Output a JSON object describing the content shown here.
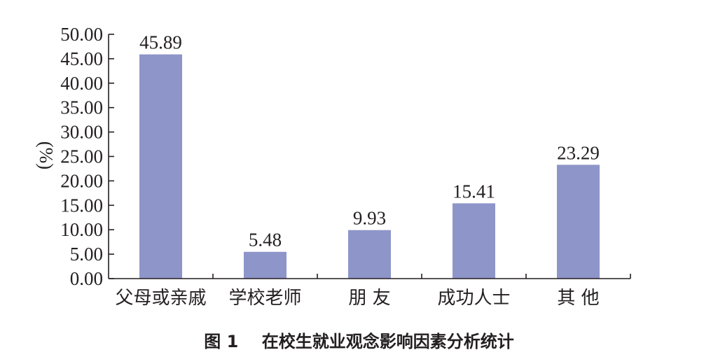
{
  "caption": "图 1    在校生就业观念影响因素分析统计",
  "chart_data": {
    "type": "bar",
    "title": "",
    "xlabel": "",
    "ylabel": "(%)",
    "categories": [
      "父母或亲戚",
      "学校老师",
      "朋 友",
      "成功人士",
      "其 他"
    ],
    "values": [
      45.89,
      5.48,
      9.93,
      15.41,
      23.29
    ],
    "data_labels": [
      "45.89",
      "5.48",
      "9.93",
      "15.41",
      "23.29"
    ],
    "ylim": [
      0,
      50
    ],
    "yticks": [
      0,
      5,
      10,
      15,
      20,
      25,
      30,
      35,
      40,
      45,
      50
    ],
    "ytick_labels": [
      "0.00",
      "5.00",
      "10.00",
      "15.00",
      "20.00",
      "25.00",
      "30.00",
      "35.00",
      "40.00",
      "45.00",
      "50.00"
    ],
    "bar_color": "#8e95c9",
    "grid": false,
    "legend": "none"
  }
}
